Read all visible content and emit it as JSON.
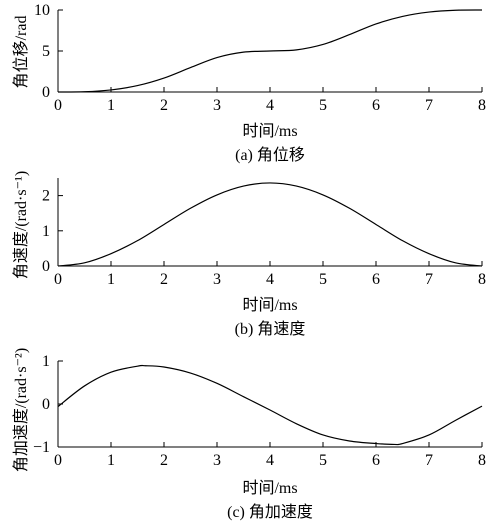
{
  "chart_data": [
    {
      "type": "line",
      "caption": "(a) 角位移",
      "xlabel": "时间/ms",
      "ylabel": "角位移/rad",
      "xlim": [
        0,
        8
      ],
      "ylim": [
        0,
        10
      ],
      "xticks": [
        0,
        1,
        2,
        3,
        4,
        5,
        6,
        7,
        8
      ],
      "yticks": [
        0,
        5,
        10
      ],
      "grid": false,
      "series": [
        {
          "x": [
            0,
            0.5,
            1,
            1.5,
            2,
            2.5,
            3,
            3.5,
            4,
            4.5,
            5,
            5.5,
            6,
            6.5,
            7,
            7.5,
            8
          ],
          "values": [
            0,
            0.03,
            0.25,
            0.78,
            1.7,
            2.98,
            4.2,
            4.86,
            5.0,
            5.14,
            5.8,
            7.0,
            8.3,
            9.22,
            9.75,
            9.97,
            10.0
          ]
        }
      ]
    },
    {
      "type": "line",
      "caption": "(b) 角速度",
      "xlabel": "时间/ms",
      "ylabel": "角速度/(rad·s⁻¹)",
      "xlim": [
        0,
        8
      ],
      "ylim": [
        0,
        2.5
      ],
      "xticks": [
        0,
        1,
        2,
        3,
        4,
        5,
        6,
        7,
        8
      ],
      "yticks": [
        0,
        1,
        2
      ],
      "grid": false,
      "series": [
        {
          "x": [
            0,
            0.5,
            1,
            1.5,
            2,
            2.5,
            3,
            3.5,
            4,
            4.5,
            5,
            5.5,
            6,
            6.5,
            7,
            7.5,
            8
          ],
          "values": [
            0,
            0.09,
            0.35,
            0.72,
            1.18,
            1.64,
            2.02,
            2.27,
            2.36,
            2.27,
            2.02,
            1.64,
            1.18,
            0.72,
            0.35,
            0.09,
            0
          ]
        }
      ]
    },
    {
      "type": "line",
      "caption": "(c) 角加速度",
      "xlabel": "时间/ms",
      "ylabel": "角加速度/(rad·s⁻²)",
      "xlim": [
        0,
        8
      ],
      "ylim": [
        -1,
        1
      ],
      "xticks": [
        0,
        1,
        2,
        3,
        4,
        5,
        6,
        7,
        8
      ],
      "yticks": [
        -1,
        0,
        1
      ],
      "grid": false,
      "series": [
        {
          "x": [
            0,
            0.5,
            1,
            1.5,
            1.65,
            2,
            2.5,
            3,
            3.5,
            4,
            4.5,
            5,
            5.5,
            6,
            6.35,
            6.5,
            7,
            7.5,
            8
          ],
          "values": [
            -0.06,
            0.42,
            0.74,
            0.88,
            0.89,
            0.86,
            0.72,
            0.48,
            0.17,
            -0.14,
            -0.46,
            -0.72,
            -0.86,
            -0.92,
            -0.94,
            -0.92,
            -0.72,
            -0.38,
            -0.05
          ]
        }
      ]
    }
  ]
}
